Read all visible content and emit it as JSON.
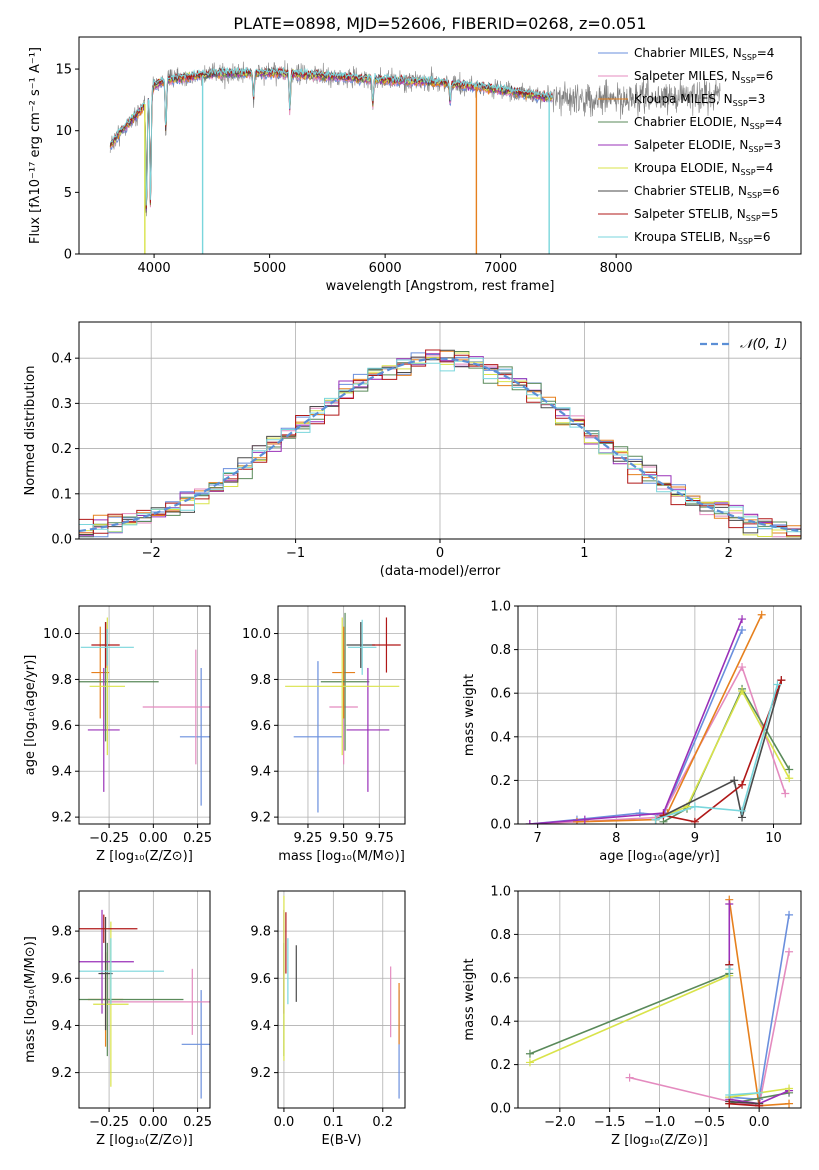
{
  "figure_title": "PLATE=0898, MJD=52606, FIBERID=0268, z=0.051",
  "colors": {
    "Chabrier MILES": "#6a8fdd",
    "Salpeter MILES": "#e48bbf",
    "Kroupa MILES": "#e6801e",
    "Chabrier ELODIE": "#5a8a5a",
    "Salpeter ELODIE": "#9a30b8",
    "Kroupa ELODIE": "#d9e34a",
    "Chabrier STELIB": "#4a4a4a",
    "Salpeter STELIB": "#b01818",
    "Kroupa STELIB": "#7ad6dc",
    "data": "#808080"
  },
  "chart_data": [
    {
      "id": "spectrum",
      "type": "line",
      "xlabel": "wavelength [Angstrom, rest frame]",
      "ylabel": "Flux [fλ10⁻¹⁷ erg cm⁻² s⁻¹ A⁻¹]",
      "xlim": [
        3350,
        9600
      ],
      "ylim": [
        0,
        17.6
      ],
      "xticks": [
        4000,
        5000,
        6000,
        7000,
        8000
      ],
      "yticks": [
        0,
        5,
        10,
        15
      ],
      "grid": false,
      "legend_position": "top-right",
      "legend": [
        {
          "name": "Chabrier MILES",
          "sub": "SSP",
          "n": 4
        },
        {
          "name": "Salpeter MILES",
          "sub": "SSP",
          "n": 6
        },
        {
          "name": "Kroupa MILES",
          "sub": "SSP",
          "n": 3
        },
        {
          "name": "Chabrier ELODIE",
          "sub": "SSP",
          "n": 4
        },
        {
          "name": "Salpeter ELODIE",
          "sub": "SSP",
          "n": 3
        },
        {
          "name": "Kroupa ELODIE",
          "sub": "SSP",
          "n": 4
        },
        {
          "name": "Chabrier STELIB",
          "sub": "SSP",
          "n": 6
        },
        {
          "name": "Salpeter STELIB",
          "sub": "SSP",
          "n": 5
        },
        {
          "name": "Kroupa STELIB",
          "sub": "SSP",
          "n": 6
        }
      ],
      "continuum_points": [
        [
          3600,
          8.5
        ],
        [
          3700,
          9.8
        ],
        [
          3900,
          11.8
        ],
        [
          4000,
          13.6
        ],
        [
          4100,
          14.1
        ],
        [
          4500,
          14.6
        ],
        [
          5000,
          14.7
        ],
        [
          5500,
          14.4
        ],
        [
          6000,
          14.1
        ],
        [
          6500,
          13.9
        ],
        [
          7000,
          13.3
        ],
        [
          7400,
          12.7
        ],
        [
          7700,
          12.6
        ],
        [
          8200,
          12.5
        ],
        [
          8500,
          12.8
        ],
        [
          8900,
          12.9
        ]
      ],
      "model_wavelength_range": [
        3620,
        7450
      ],
      "data_wavelength_range": [
        3620,
        8900
      ]
    },
    {
      "id": "residual_hist",
      "type": "histogram",
      "xlabel": "(data-model)/error",
      "ylabel": "Normed distribution",
      "xlim": [
        -2.5,
        2.5
      ],
      "ylim": [
        0,
        0.48
      ],
      "xticks": [
        -2,
        -1,
        0,
        1,
        2
      ],
      "yticks": [
        0.0,
        0.1,
        0.2,
        0.3,
        0.4
      ],
      "grid": true,
      "legend_position": "top-right",
      "reference_curve": {
        "name": "𝒩(0, 1)",
        "style": "dashed",
        "color": "#5b8fd6"
      },
      "bin_width": 0.1
    },
    {
      "id": "age_vs_Z",
      "type": "errorbar",
      "xlabel": "Z [log₁₀(Z/Z⊙)]",
      "ylabel": "age  [log₁₀(age/yr)]",
      "xlim": [
        -0.42,
        0.32
      ],
      "ylim": [
        9.17,
        10.12
      ],
      "xticks": [
        -0.25,
        0.0,
        0.25
      ],
      "yticks": [
        9.2,
        9.4,
        9.6,
        9.8,
        10.0
      ],
      "grid": true,
      "points": [
        {
          "model": "Chabrier MILES",
          "x": 0.27,
          "xerr": 0.12,
          "y": 9.55,
          "yerr": 0.3
        },
        {
          "model": "Salpeter MILES",
          "x": 0.24,
          "xerr": 0.3,
          "y": 9.68,
          "yerr": 0.25
        },
        {
          "model": "Kroupa MILES",
          "x": -0.3,
          "xerr": 0.05,
          "y": 9.83,
          "yerr": 0.2
        },
        {
          "model": "Chabrier ELODIE",
          "x": -0.27,
          "xerr": 0.3,
          "y": 9.79,
          "yerr": 0.26
        },
        {
          "model": "Salpeter ELODIE",
          "x": -0.28,
          "xerr": 0.09,
          "y": 9.58,
          "yerr": 0.27
        },
        {
          "model": "Kroupa ELODIE",
          "x": -0.26,
          "xerr": 0.1,
          "y": 9.77,
          "yerr": 0.3
        },
        {
          "model": "Chabrier STELIB",
          "x": -0.27,
          "xerr": 0.02,
          "y": 9.95,
          "yerr": 0.1
        },
        {
          "model": "Salpeter STELIB",
          "x": -0.27,
          "xerr": 0.08,
          "y": 9.95,
          "yerr": 0.1
        },
        {
          "model": "Kroupa STELIB",
          "x": -0.26,
          "xerr": 0.15,
          "y": 9.94,
          "yerr": 0.08
        }
      ]
    },
    {
      "id": "age_vs_mass",
      "type": "errorbar",
      "xlabel": "mass [log₁₀(M/M⊙)]",
      "ylabel": "",
      "xlim": [
        9.04,
        9.93
      ],
      "ylim": [
        9.17,
        10.12
      ],
      "xticks": [
        9.25,
        9.5,
        9.75
      ],
      "yticks": [
        9.2,
        9.4,
        9.6,
        9.8,
        10.0
      ],
      "grid": true,
      "points": [
        {
          "model": "Chabrier MILES",
          "x": 9.32,
          "xerr": 0.17,
          "y": 9.55,
          "yerr": 0.33
        },
        {
          "model": "Salpeter MILES",
          "x": 9.5,
          "xerr": 0.1,
          "y": 9.68,
          "yerr": 0.25
        },
        {
          "model": "Kroupa MILES",
          "x": 9.5,
          "xerr": 0.08,
          "y": 9.83,
          "yerr": 0.2
        },
        {
          "model": "Chabrier ELODIE",
          "x": 9.51,
          "xerr": 0.17,
          "y": 9.79,
          "yerr": 0.3
        },
        {
          "model": "Salpeter ELODIE",
          "x": 9.67,
          "xerr": 0.15,
          "y": 9.58,
          "yerr": 0.27
        },
        {
          "model": "Kroupa ELODIE",
          "x": 9.49,
          "xerr": 0.4,
          "y": 9.77,
          "yerr": 0.3
        },
        {
          "model": "Chabrier STELIB",
          "x": 9.62,
          "xerr": 0.1,
          "y": 9.95,
          "yerr": 0.1
        },
        {
          "model": "Salpeter STELIB",
          "x": 9.8,
          "xerr": 0.1,
          "y": 9.95,
          "yerr": 0.12
        },
        {
          "model": "Kroupa STELIB",
          "x": 9.63,
          "xerr": 0.1,
          "y": 9.94,
          "yerr": 0.12
        }
      ]
    },
    {
      "id": "weight_vs_age",
      "type": "line",
      "xlabel": "age  [log₁₀(age/yr)]",
      "ylabel": "mass weight",
      "xlim": [
        6.75,
        10.35
      ],
      "ylim": [
        0,
        1
      ],
      "xticks": [
        7,
        8,
        9,
        10
      ],
      "yticks": [
        0.0,
        0.2,
        0.4,
        0.6,
        0.8,
        1.0
      ],
      "grid": true,
      "series": [
        {
          "model": "Chabrier MILES",
          "points": [
            [
              6.9,
              0.0
            ],
            [
              7.5,
              0.02
            ],
            [
              8.3,
              0.05
            ],
            [
              8.6,
              0.04
            ],
            [
              9.6,
              0.89
            ]
          ]
        },
        {
          "model": "Salpeter MILES",
          "points": [
            [
              6.9,
              0.0
            ],
            [
              7.5,
              0.01
            ],
            [
              8.5,
              0.03
            ],
            [
              8.6,
              0.05
            ],
            [
              9.6,
              0.72
            ],
            [
              10.15,
              0.14
            ]
          ]
        },
        {
          "model": "Kroupa MILES",
          "points": [
            [
              7.5,
              0.01
            ],
            [
              8.5,
              0.02
            ],
            [
              8.65,
              0.05
            ],
            [
              9.85,
              0.96
            ]
          ]
        },
        {
          "model": "Chabrier ELODIE",
          "points": [
            [
              8.6,
              0.01
            ],
            [
              8.9,
              0.07
            ],
            [
              9.6,
              0.62
            ],
            [
              10.2,
              0.25
            ]
          ]
        },
        {
          "model": "Salpeter ELODIE",
          "points": [
            [
              6.9,
              0.0
            ],
            [
              7.6,
              0.02
            ],
            [
              8.6,
              0.05
            ],
            [
              9.6,
              0.94
            ]
          ]
        },
        {
          "model": "Kroupa ELODIE",
          "points": [
            [
              8.5,
              0.02
            ],
            [
              8.9,
              0.08
            ],
            [
              9.6,
              0.61
            ],
            [
              10.2,
              0.21
            ]
          ]
        },
        {
          "model": "Chabrier STELIB",
          "points": [
            [
              8.5,
              0.02
            ],
            [
              9.5,
              0.2
            ],
            [
              9.6,
              0.03
            ],
            [
              10.1,
              0.66
            ]
          ]
        },
        {
          "model": "Salpeter STELIB",
          "points": [
            [
              8.6,
              0.04
            ],
            [
              9.0,
              0.01
            ],
            [
              9.6,
              0.18
            ],
            [
              10.1,
              0.66
            ]
          ]
        },
        {
          "model": "Kroupa STELIB",
          "points": [
            [
              8.5,
              0.02
            ],
            [
              9.0,
              0.08
            ],
            [
              9.6,
              0.06
            ],
            [
              10.05,
              0.64
            ]
          ]
        }
      ]
    },
    {
      "id": "mass_vs_Z",
      "type": "errorbar",
      "xlabel": "Z [log₁₀(Z/Z⊙)]",
      "ylabel": "mass [log₁₀(M/M⊙)]",
      "xlim": [
        -0.42,
        0.32
      ],
      "ylim": [
        9.05,
        9.97
      ],
      "xticks": [
        -0.25,
        0.0,
        0.25
      ],
      "yticks": [
        9.2,
        9.4,
        9.6,
        9.8
      ],
      "grid": true,
      "points": [
        {
          "model": "Chabrier MILES",
          "x": 0.27,
          "xerr": 0.11,
          "y": 9.32,
          "yerr": 0.23
        },
        {
          "model": "Salpeter MILES",
          "x": 0.22,
          "xerr": 0.48,
          "y": 9.5,
          "yerr": 0.14
        },
        {
          "model": "Kroupa MILES",
          "x": -0.27,
          "xerr": 0.1,
          "y": 9.51,
          "yerr": 0.2
        },
        {
          "model": "Chabrier ELODIE",
          "x": -0.26,
          "xerr": 0.43,
          "y": 9.51,
          "yerr": 0.24
        },
        {
          "model": "Salpeter ELODIE",
          "x": -0.29,
          "xerr": 0.18,
          "y": 9.67,
          "yerr": 0.22
        },
        {
          "model": "Kroupa ELODIE",
          "x": -0.24,
          "xerr": 0.1,
          "y": 9.49,
          "yerr": 0.35
        },
        {
          "model": "Chabrier STELIB",
          "x": -0.27,
          "xerr": 0.04,
          "y": 9.62,
          "yerr": 0.24
        },
        {
          "model": "Salpeter STELIB",
          "x": -0.28,
          "xerr": 0.19,
          "y": 9.81,
          "yerr": 0.06
        },
        {
          "model": "Kroupa STELIB",
          "x": -0.24,
          "xerr": 0.3,
          "y": 9.63,
          "yerr": 0.14
        }
      ]
    },
    {
      "id": "mass_vs_ebv",
      "type": "errorbar",
      "xlabel": "E(B-V)",
      "ylabel": "",
      "xlim": [
        -0.012,
        0.245
      ],
      "ylim": [
        9.05,
        9.97
      ],
      "xticks": [
        0.0,
        0.1,
        0.2
      ],
      "yticks": [
        9.2,
        9.4,
        9.6,
        9.8
      ],
      "grid": true,
      "points": [
        {
          "model": "Chabrier MILES",
          "x": 0.233,
          "xerr": 0.0,
          "y": 9.32,
          "yerr": 0.23
        },
        {
          "model": "Salpeter MILES",
          "x": 0.216,
          "xerr": 0.0,
          "y": 9.5,
          "yerr": 0.15
        },
        {
          "model": "Kroupa MILES",
          "x": 0.233,
          "xerr": 0.0,
          "y": 9.45,
          "yerr": 0.13
        },
        {
          "model": "Chabrier ELODIE",
          "x": 0.0,
          "xerr": 0.0,
          "y": 9.51,
          "yerr": 0.24
        },
        {
          "model": "Salpeter ELODIE",
          "x": 0.0,
          "xerr": 0.0,
          "y": 9.67,
          "yerr": 0.22
        },
        {
          "model": "Kroupa ELODIE",
          "x": 0.0,
          "xerr": 0.0,
          "y": 9.6,
          "yerr": 0.35
        },
        {
          "model": "Chabrier STELIB",
          "x": 0.025,
          "xerr": 0.0,
          "y": 9.62,
          "yerr": 0.12
        },
        {
          "model": "Salpeter STELIB",
          "x": 0.004,
          "xerr": 0.0,
          "y": 9.75,
          "yerr": 0.13
        },
        {
          "model": "Kroupa STELIB",
          "x": 0.008,
          "xerr": 0.0,
          "y": 9.63,
          "yerr": 0.14
        }
      ]
    },
    {
      "id": "weight_vs_Z",
      "type": "line",
      "xlabel": "Z [log₁₀(Z/Z⊙)]",
      "ylabel": "mass weight",
      "xlim": [
        -2.42,
        0.42
      ],
      "ylim": [
        0,
        1
      ],
      "xticks": [
        -2.0,
        -1.5,
        -1.0,
        -0.5,
        0.0
      ],
      "yticks": [
        0.0,
        0.2,
        0.4,
        0.6,
        0.8,
        1.0
      ],
      "grid": true,
      "series": [
        {
          "model": "Chabrier MILES",
          "points": [
            [
              -0.3,
              0.05
            ],
            [
              0.0,
              0.04
            ],
            [
              0.3,
              0.89
            ]
          ]
        },
        {
          "model": "Salpeter MILES",
          "points": [
            [
              -1.3,
              0.14
            ],
            [
              -0.3,
              0.03
            ],
            [
              0.0,
              0.01
            ],
            [
              0.3,
              0.72
            ]
          ]
        },
        {
          "model": "Kroupa MILES",
          "points": [
            [
              -0.3,
              0.96
            ],
            [
              0.0,
              0.01
            ],
            [
              0.3,
              0.02
            ]
          ]
        },
        {
          "model": "Chabrier ELODIE",
          "points": [
            [
              -2.3,
              0.25
            ],
            [
              -0.3,
              0.62
            ],
            [
              -0.3,
              0.02
            ],
            [
              0.3,
              0.07
            ]
          ]
        },
        {
          "model": "Salpeter ELODIE",
          "points": [
            [
              -0.3,
              0.94
            ],
            [
              -0.3,
              0.04
            ],
            [
              0.0,
              0.02
            ],
            [
              0.3,
              0.08
            ]
          ]
        },
        {
          "model": "Kroupa ELODIE",
          "points": [
            [
              -2.3,
              0.21
            ],
            [
              -0.3,
              0.61
            ],
            [
              -0.3,
              0.05
            ],
            [
              0.3,
              0.09
            ]
          ]
        },
        {
          "model": "Chabrier STELIB",
          "points": [
            [
              -0.3,
              0.66
            ],
            [
              -0.3,
              0.03
            ],
            [
              0.0,
              0.02
            ]
          ]
        },
        {
          "model": "Salpeter STELIB",
          "points": [
            [
              -0.3,
              0.66
            ],
            [
              -0.3,
              0.02
            ],
            [
              0.0,
              0.01
            ]
          ]
        },
        {
          "model": "Kroupa STELIB",
          "points": [
            [
              -0.3,
              0.64
            ],
            [
              -0.3,
              0.06
            ],
            [
              0.0,
              0.07
            ]
          ]
        }
      ]
    }
  ]
}
